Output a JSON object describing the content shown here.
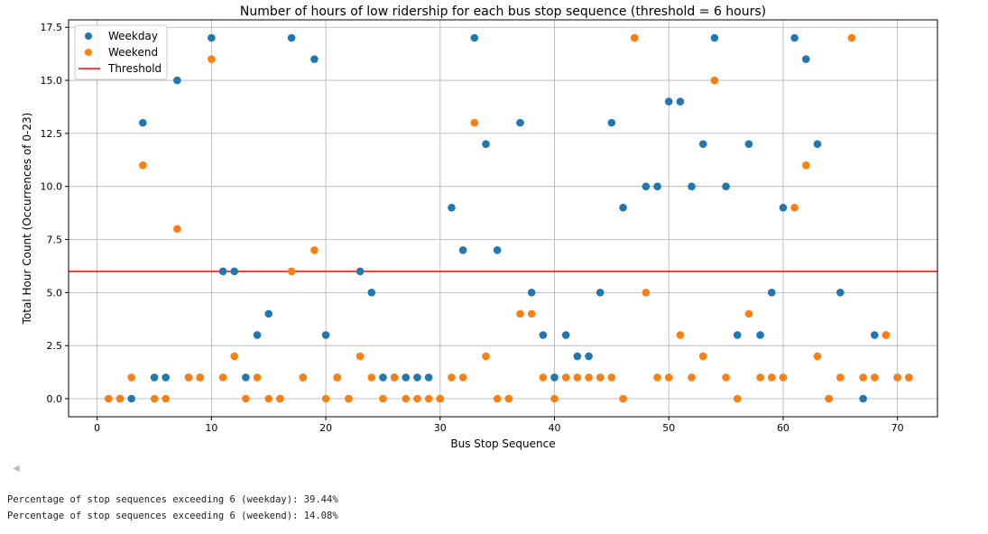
{
  "chart_data": {
    "type": "scatter",
    "title": "Number of hours of low ridership for each bus stop sequence (threshold = 6 hours)",
    "xlabel": "Bus Stop Sequence",
    "ylabel": "Total Hour Count (Occurrences of 0-23)",
    "xlim": [
      -2.5,
      73.5
    ],
    "ylim": [
      -0.85,
      17.85
    ],
    "xticks": [
      0,
      10,
      20,
      30,
      40,
      50,
      60,
      70
    ],
    "yticks": [
      0,
      2.5,
      5,
      7.5,
      10,
      12.5,
      15,
      17.5
    ],
    "xtick_labels": [
      "0",
      "10",
      "20",
      "30",
      "40",
      "50",
      "60",
      "70"
    ],
    "ytick_labels": [
      "0.0",
      "2.5",
      "5.0",
      "7.5",
      "10.0",
      "12.5",
      "15.0",
      "17.5"
    ],
    "grid": true,
    "legend_position": "top-left",
    "x": [
      1,
      2,
      3,
      4,
      5,
      6,
      7,
      8,
      9,
      10,
      11,
      12,
      13,
      14,
      15,
      16,
      17,
      18,
      19,
      20,
      21,
      22,
      23,
      24,
      25,
      26,
      27,
      28,
      29,
      30,
      31,
      32,
      33,
      34,
      35,
      36,
      37,
      38,
      39,
      40,
      41,
      42,
      43,
      44,
      45,
      46,
      47,
      48,
      49,
      50,
      51,
      52,
      53,
      54,
      55,
      56,
      57,
      58,
      59,
      60,
      61,
      62,
      63,
      64,
      65,
      66,
      67,
      68,
      69,
      70,
      71
    ],
    "series": [
      {
        "name": "Weekday",
        "color": "#1f77b4",
        "values": [
          0,
          0,
          0,
          13,
          1,
          1,
          15,
          1,
          1,
          17,
          6,
          6,
          1,
          3,
          4,
          0,
          17,
          1,
          16,
          3,
          1,
          0,
          6,
          5,
          1,
          1,
          1,
          1,
          1,
          0,
          9,
          7,
          17,
          12,
          7,
          0,
          13,
          5,
          3,
          1,
          3,
          2,
          2,
          5,
          13,
          9,
          17,
          10,
          10,
          14,
          14,
          10,
          12,
          17,
          10,
          3,
          12,
          3,
          5,
          9,
          17,
          16,
          12,
          0,
          5,
          17,
          0,
          3,
          3,
          1,
          1
        ]
      },
      {
        "name": "Weekend",
        "color": "#ff7f0e",
        "values": [
          0,
          0,
          1,
          11,
          0,
          0,
          8,
          1,
          1,
          16,
          1,
          2,
          0,
          1,
          0,
          0,
          6,
          1,
          7,
          0,
          1,
          0,
          2,
          1,
          0,
          1,
          0,
          0,
          0,
          0,
          1,
          1,
          13,
          2,
          0,
          0,
          4,
          4,
          1,
          0,
          1,
          1,
          1,
          1,
          1,
          0,
          17,
          5,
          1,
          1,
          3,
          1,
          2,
          15,
          1,
          0,
          4,
          1,
          1,
          1,
          9,
          11,
          2,
          0,
          1,
          17,
          1,
          1,
          3,
          1,
          1
        ]
      }
    ],
    "threshold": {
      "name": "Threshold",
      "value": 6,
      "color": "#ff0000"
    }
  },
  "output": {
    "weekday_line": "Percentage of stop sequences exceeding 6 (weekday): 39.44%",
    "weekend_line": "Percentage of stop sequences exceeding 6 (weekend): 14.08%"
  }
}
